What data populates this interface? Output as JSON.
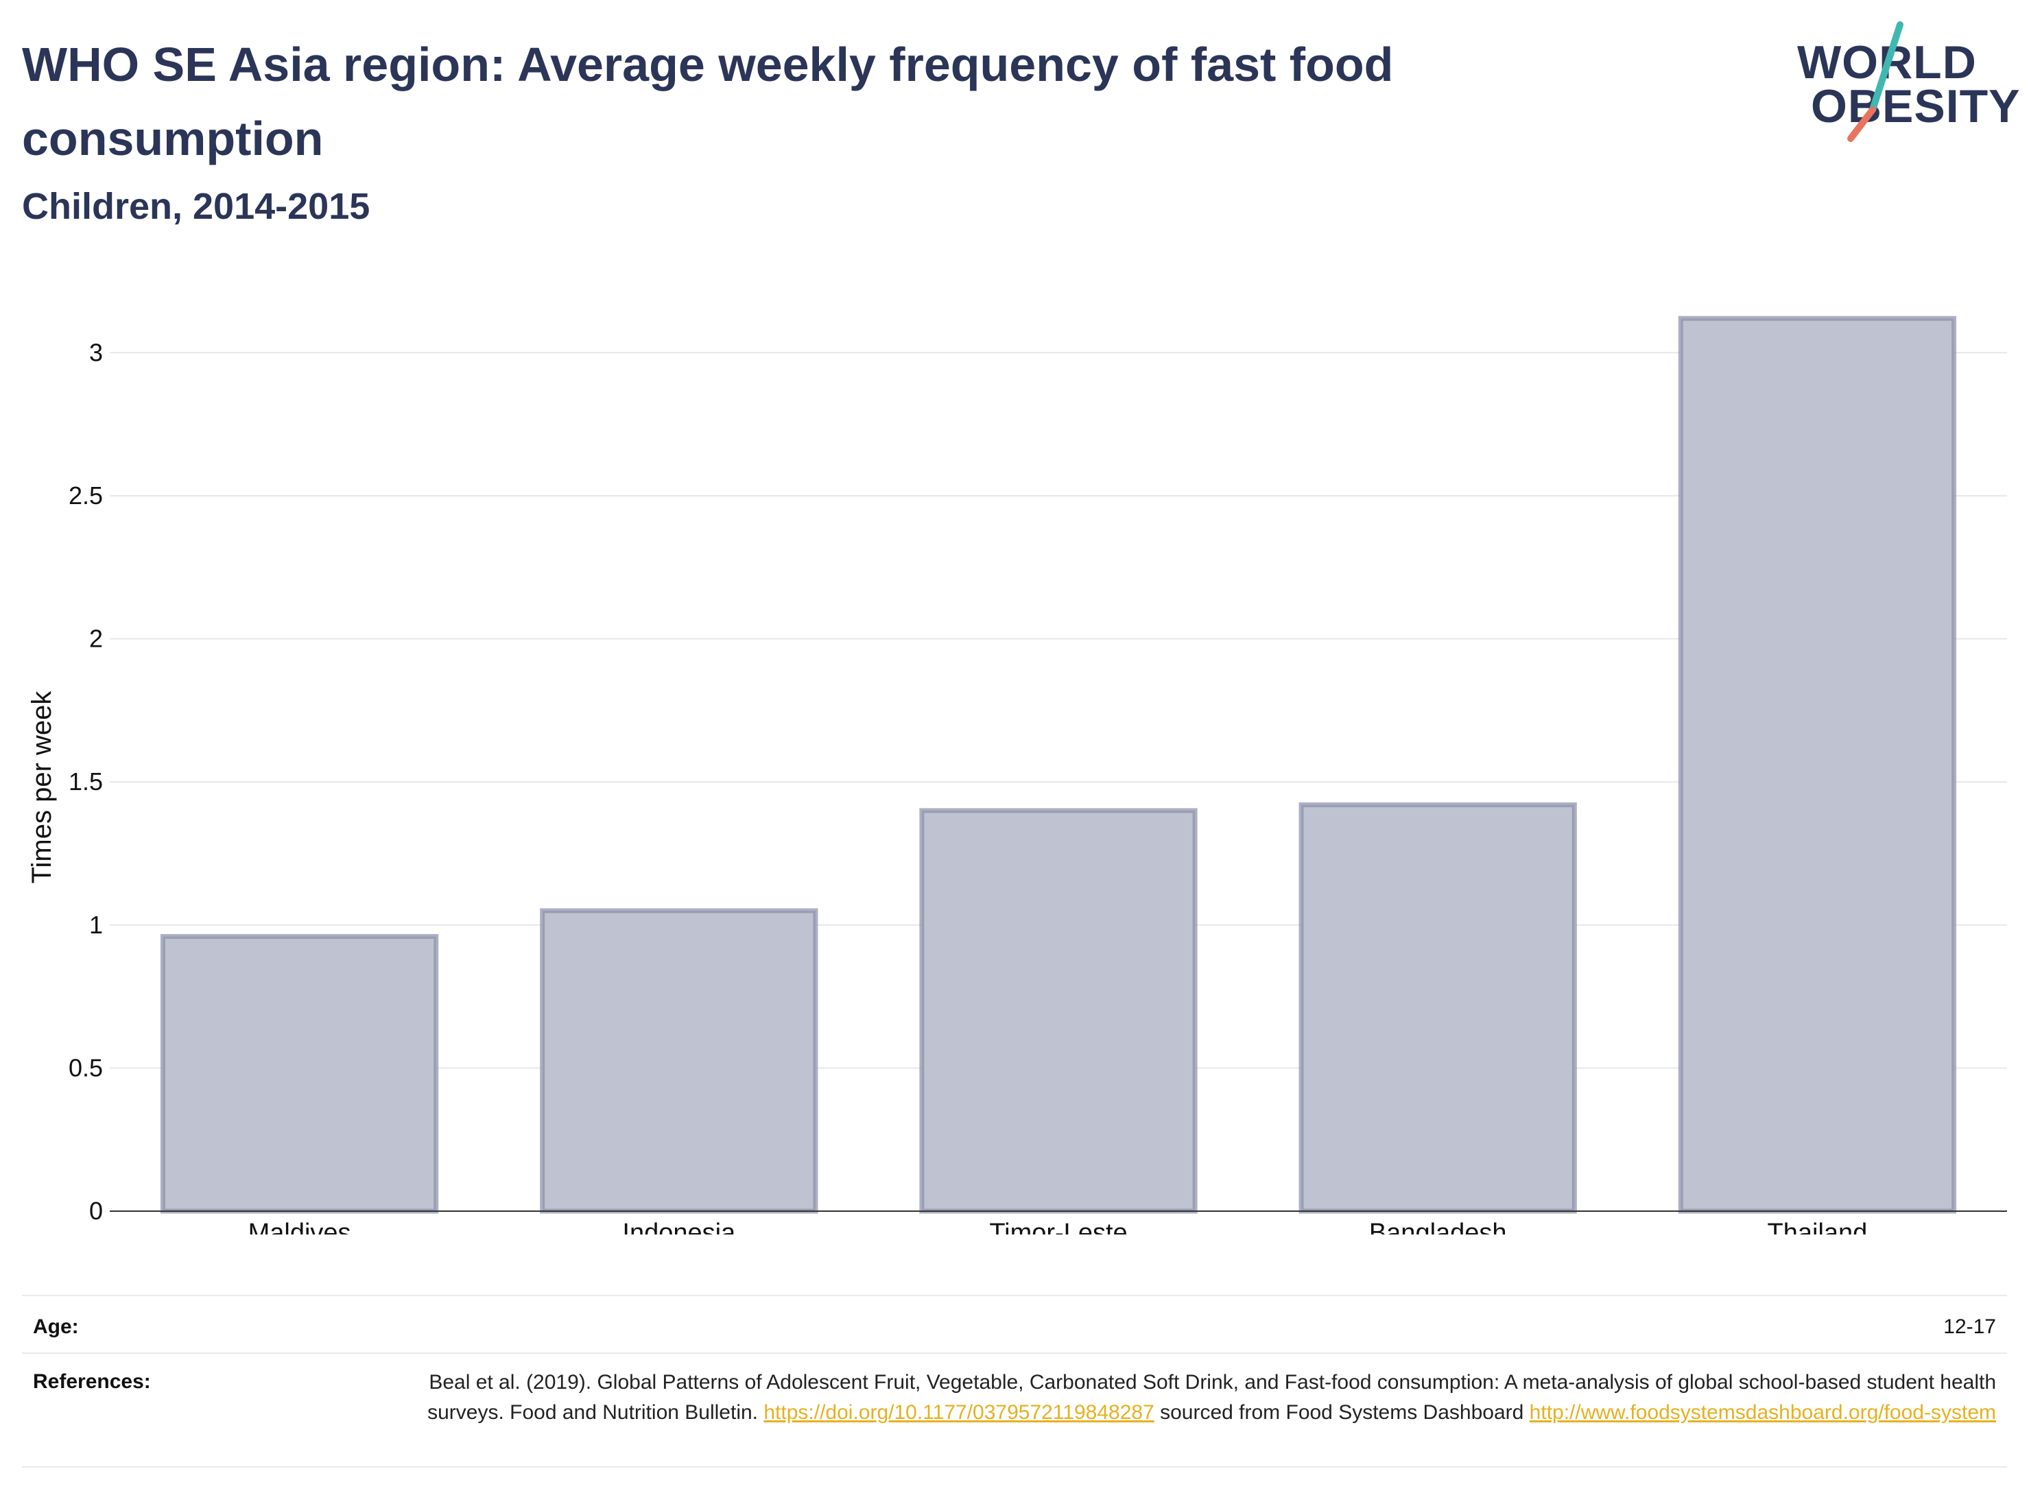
{
  "header": {
    "title": "WHO SE Asia region: Average weekly frequency of fast food consumption",
    "subtitle": "Children, 2014-2015"
  },
  "logo": {
    "line1": "WORLD",
    "line2": "OBESITY",
    "colors": {
      "teal": "#3fb8b0",
      "coral": "#e8735f"
    }
  },
  "chart_data": {
    "type": "bar",
    "categories": [
      "Maldives",
      "Indonesia",
      "Timor-Leste",
      "Bangladesh",
      "Thailand"
    ],
    "values": [
      0.96,
      1.05,
      1.4,
      1.42,
      3.12
    ],
    "title": "WHO SE Asia region: Average weekly frequency of fast food consumption",
    "subtitle": "Children, 2014-2015",
    "xlabel": "",
    "ylabel": "Times per week",
    "ylim": [
      0,
      3.25
    ],
    "yticks": [
      0,
      0.5,
      1,
      1.5,
      2,
      2.5,
      3
    ],
    "ytick_labels": [
      "0",
      "0.5",
      "1",
      "1.5",
      "2",
      "2.5",
      "3"
    ],
    "grid": true,
    "bar_fill": "#bfc2d0",
    "bar_stroke": "#8a8fa8"
  },
  "footer": {
    "age_label": "Age:",
    "age_value": "12-17",
    "references_label": "References:",
    "ref_text_1": "Beal et al. (2019). Global Patterns of Adolescent Fruit, Vegetable, Carbonated Soft Drink, and Fast-food consumption: A meta-analysis of global school-based student health surveys. Food and Nutrition Bulletin.",
    "ref_link_1": "https://doi.org/10.1177/0379572119848287",
    "ref_text_2": "sourced from Food Systems Dashboard",
    "ref_link_2": "http://www.foodsystemsdashboard.org/food-system"
  }
}
